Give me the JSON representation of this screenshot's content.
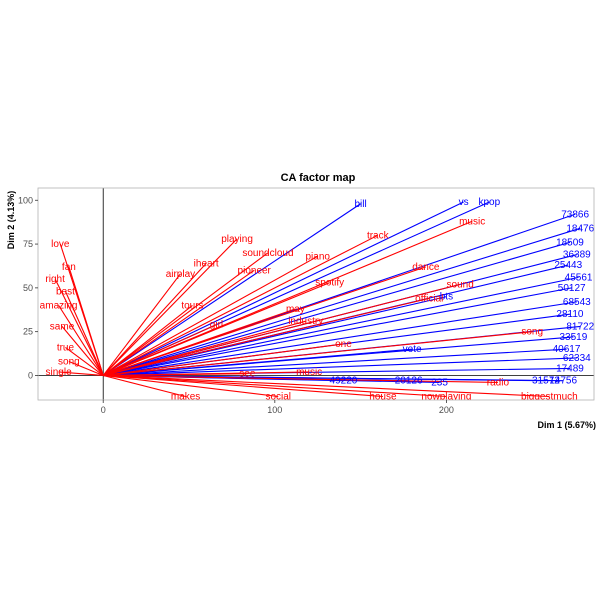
{
  "chart_data": {
    "type": "scatter",
    "title": "CA factor map",
    "xlabel": "Dim 1 (5.67%)",
    "ylabel": "Dim 2 (4.13%)",
    "xlim": [
      -38,
      286
    ],
    "ylim": [
      -14,
      107
    ],
    "x_ticks": [
      0,
      100,
      200
    ],
    "y_ticks": [
      0,
      25,
      50,
      75,
      100
    ],
    "grid": false,
    "colors": {
      "row_points": "#0000ff",
      "column_points": "#ff0000",
      "axis_lines": "#000000",
      "background": "#ffffff",
      "panel_border": "#b3b3b3"
    },
    "series": [
      {
        "points": [
          {
            "x": 275,
            "y": 92,
            "label": "73866"
          },
          {
            "x": 278,
            "y": 84,
            "label": "18476"
          },
          {
            "x": 272,
            "y": 76,
            "label": "18509"
          },
          {
            "x": 276,
            "y": 69,
            "label": "36389"
          },
          {
            "x": 271,
            "y": 63,
            "label": "25443"
          },
          {
            "x": 277,
            "y": 56,
            "label": "45561"
          },
          {
            "x": 273,
            "y": 50,
            "label": "50127"
          },
          {
            "x": 276,
            "y": 42,
            "label": "68543"
          },
          {
            "x": 272,
            "y": 35,
            "label": "28110"
          },
          {
            "x": 278,
            "y": 28,
            "label": "81722"
          },
          {
            "x": 274,
            "y": 22,
            "label": "33519"
          },
          {
            "x": 270,
            "y": 15,
            "label": "40617"
          },
          {
            "x": 276,
            "y": 10,
            "label": "62334"
          },
          {
            "x": 272,
            "y": 4,
            "label": "17489"
          },
          {
            "x": 268,
            "y": -3,
            "label": "14756"
          },
          {
            "x": 258,
            "y": -3,
            "label": "31572"
          },
          {
            "x": 140,
            "y": -3,
            "label": "49220"
          },
          {
            "x": 178,
            "y": -3,
            "label": "20126"
          },
          {
            "x": 196,
            "y": -4,
            "label": "235"
          },
          {
            "x": 150,
            "y": 98,
            "label": "bill"
          },
          {
            "x": 210,
            "y": 99,
            "label": "vs"
          },
          {
            "x": 225,
            "y": 99,
            "label": "kpop"
          },
          {
            "x": 180,
            "y": 15,
            "label": "vote"
          },
          {
            "x": 200,
            "y": 45,
            "label": "bts"
          }
        ]
      },
      {
        "points": [
          {
            "x": -25,
            "y": 75,
            "label": "love"
          },
          {
            "x": -20,
            "y": 62,
            "label": "fan"
          },
          {
            "x": -28,
            "y": 55,
            "label": "right"
          },
          {
            "x": -22,
            "y": 48,
            "label": "best"
          },
          {
            "x": -26,
            "y": 40,
            "label": "amazing"
          },
          {
            "x": -24,
            "y": 28,
            "label": "same"
          },
          {
            "x": -22,
            "y": 16,
            "label": "true"
          },
          {
            "x": -20,
            "y": 8,
            "label": "song"
          },
          {
            "x": -26,
            "y": 2,
            "label": "single"
          },
          {
            "x": 60,
            "y": 64,
            "label": "iheart"
          },
          {
            "x": 78,
            "y": 78,
            "label": "playing"
          },
          {
            "x": 96,
            "y": 70,
            "label": "soundcloud"
          },
          {
            "x": 125,
            "y": 68,
            "label": "piano"
          },
          {
            "x": 188,
            "y": 62,
            "label": "dance"
          },
          {
            "x": 132,
            "y": 53,
            "label": "spotify"
          },
          {
            "x": 208,
            "y": 52,
            "label": "sound"
          },
          {
            "x": 190,
            "y": 44,
            "label": "official"
          },
          {
            "x": 112,
            "y": 38,
            "label": "may"
          },
          {
            "x": 118,
            "y": 31,
            "label": "industry"
          },
          {
            "x": 66,
            "y": 29,
            "label": "girl"
          },
          {
            "x": 52,
            "y": 40,
            "label": "tours"
          },
          {
            "x": 45,
            "y": 58,
            "label": "airplay"
          },
          {
            "x": 88,
            "y": 60,
            "label": "pioneer"
          },
          {
            "x": 140,
            "y": 18,
            "label": "one"
          },
          {
            "x": 120,
            "y": 2,
            "label": "music"
          },
          {
            "x": 84,
            "y": 1,
            "label": "see"
          },
          {
            "x": 250,
            "y": 25,
            "label": "song"
          },
          {
            "x": 230,
            "y": -4,
            "label": "radio"
          },
          {
            "x": 48,
            "y": -12,
            "label": "makes"
          },
          {
            "x": 102,
            "y": -12,
            "label": "social"
          },
          {
            "x": 163,
            "y": -12,
            "label": "house"
          },
          {
            "x": 200,
            "y": -12,
            "label": "nowplaying"
          },
          {
            "x": 260,
            "y": -12,
            "label": "biggestmuch"
          },
          {
            "x": 215,
            "y": 88,
            "label": "music"
          },
          {
            "x": 160,
            "y": 80,
            "label": "track"
          }
        ]
      }
    ]
  }
}
